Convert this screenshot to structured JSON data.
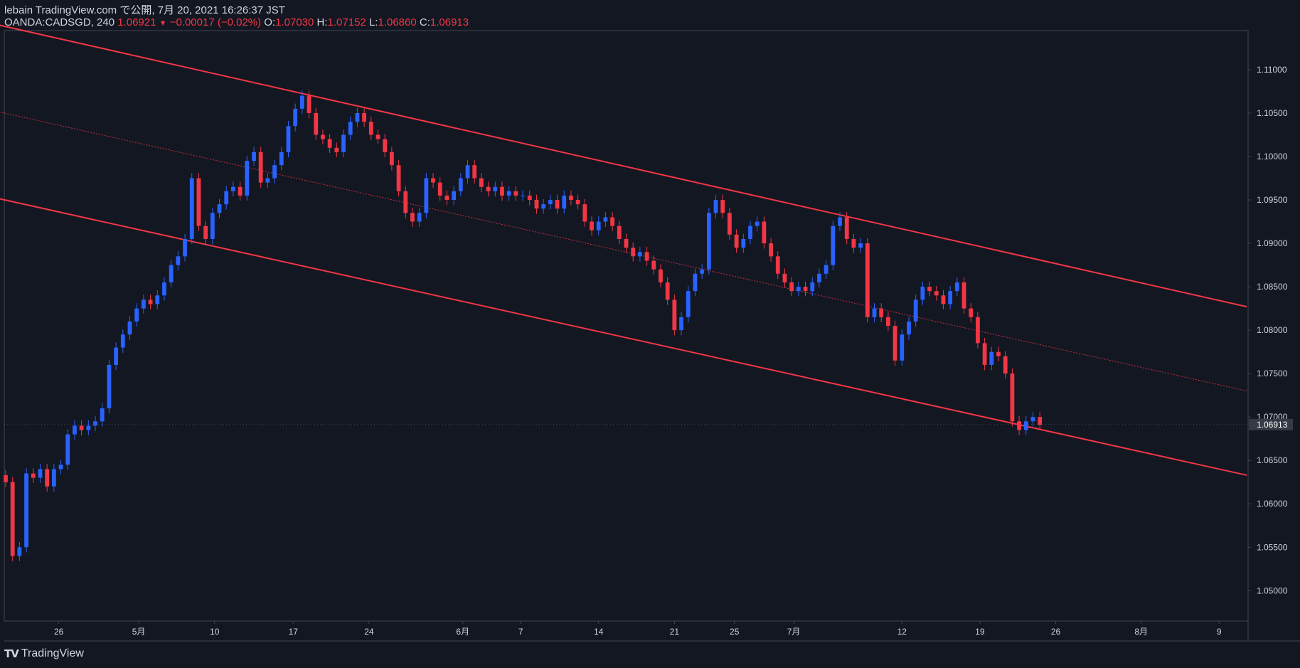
{
  "header": {
    "published": "lebain TradingView.com で公開, 7月 20, 2021 16:26:37 JST",
    "symbol": "OANDA:CADSGD, 240",
    "last": "1.06921",
    "change": "−0.00017 (−0.02%)",
    "o_label": "O:",
    "o_value": "1.07030",
    "h_label": "H:",
    "h_value": "1.07152",
    "l_label": "L:",
    "l_value": "1.06860",
    "c_label": "C:",
    "c_value": "1.06913"
  },
  "footer": {
    "brand": "TradingView"
  },
  "colors": {
    "background": "#131722",
    "up": "#2962ff",
    "down": "#f23645",
    "channel": "#f23645",
    "text": "#d1d4dc"
  },
  "chart_data": {
    "type": "candlestick",
    "title": "",
    "ylim": [
      1.0465,
      1.1145
    ],
    "y_ticks": [
      "1.11000",
      "1.10500",
      "1.10000",
      "1.09500",
      "1.09000",
      "1.08500",
      "1.08000",
      "1.07500",
      "1.07000",
      "1.06500",
      "1.06000",
      "1.05500",
      "1.05000"
    ],
    "x_ticks": [
      "26",
      "5月",
      "10",
      "17",
      "24",
      "6月",
      "7",
      "14",
      "21",
      "25",
      "7月",
      "12",
      "19",
      "26",
      "8月",
      "9"
    ],
    "x_tick_positions": [
      7.7,
      19.3,
      30.3,
      41.7,
      52.7,
      66.3,
      74.7,
      86.0,
      97.0,
      105.7,
      114.3,
      130.0,
      141.3,
      152.3,
      164.7,
      176.0
    ],
    "last_price_label": "1.06913",
    "last_price": 1.06913,
    "x_range": [
      0,
      180
    ],
    "candles_approx_close": [
      [
        0,
        1.0625
      ],
      [
        1,
        1.054
      ],
      [
        2,
        1.055
      ],
      [
        3,
        1.0635
      ],
      [
        4,
        1.063
      ],
      [
        5,
        1.064
      ],
      [
        6,
        1.062
      ],
      [
        7,
        1.064
      ],
      [
        8,
        1.0645
      ],
      [
        9,
        1.068
      ],
      [
        10,
        1.069
      ],
      [
        11,
        1.0685
      ],
      [
        12,
        1.069
      ],
      [
        13,
        1.0695
      ],
      [
        14,
        1.071
      ],
      [
        15,
        1.076
      ],
      [
        16,
        1.078
      ],
      [
        17,
        1.0795
      ],
      [
        18,
        1.081
      ],
      [
        19,
        1.0825
      ],
      [
        20,
        1.0835
      ],
      [
        21,
        1.083
      ],
      [
        22,
        1.084
      ],
      [
        23,
        1.0855
      ],
      [
        24,
        1.0875
      ],
      [
        25,
        1.0885
      ],
      [
        26,
        1.0905
      ],
      [
        27,
        1.0975
      ],
      [
        28,
        1.092
      ],
      [
        29,
        1.0905
      ],
      [
        30,
        1.0935
      ],
      [
        31,
        1.0945
      ],
      [
        32,
        1.096
      ],
      [
        33,
        1.0965
      ],
      [
        34,
        1.0955
      ],
      [
        35,
        1.0995
      ],
      [
        36,
        1.1005
      ],
      [
        37,
        1.097
      ],
      [
        38,
        1.0975
      ],
      [
        39,
        1.099
      ],
      [
        40,
        1.1005
      ],
      [
        41,
        1.1035
      ],
      [
        42,
        1.1055
      ],
      [
        43,
        1.107
      ],
      [
        44,
        1.105
      ],
      [
        45,
        1.1025
      ],
      [
        46,
        1.102
      ],
      [
        47,
        1.101
      ],
      [
        48,
        1.1005
      ],
      [
        49,
        1.1025
      ],
      [
        50,
        1.104
      ],
      [
        51,
        1.105
      ],
      [
        52,
        1.104
      ],
      [
        53,
        1.1025
      ],
      [
        54,
        1.102
      ],
      [
        55,
        1.1005
      ],
      [
        56,
        1.099
      ],
      [
        57,
        1.096
      ],
      [
        58,
        1.0935
      ],
      [
        59,
        1.0925
      ],
      [
        60,
        1.0935
      ],
      [
        61,
        1.0975
      ],
      [
        62,
        1.097
      ],
      [
        63,
        1.0955
      ],
      [
        64,
        1.095
      ],
      [
        65,
        1.096
      ],
      [
        66,
        1.0975
      ],
      [
        67,
        1.099
      ],
      [
        68,
        1.0975
      ],
      [
        69,
        1.0965
      ],
      [
        70,
        1.096
      ],
      [
        71,
        1.0965
      ],
      [
        72,
        1.0955
      ],
      [
        73,
        1.096
      ],
      [
        74,
        1.0955
      ],
      [
        75,
        1.0955
      ],
      [
        76,
        1.095
      ],
      [
        77,
        1.094
      ],
      [
        78,
        1.0945
      ],
      [
        79,
        1.095
      ],
      [
        80,
        1.094
      ],
      [
        81,
        1.0955
      ],
      [
        82,
        1.095
      ],
      [
        83,
        1.0945
      ],
      [
        84,
        1.0925
      ],
      [
        85,
        1.0915
      ],
      [
        86,
        1.0925
      ],
      [
        87,
        1.093
      ],
      [
        88,
        1.092
      ],
      [
        89,
        1.0905
      ],
      [
        90,
        1.0895
      ],
      [
        91,
        1.0885
      ],
      [
        92,
        1.089
      ],
      [
        93,
        1.088
      ],
      [
        94,
        1.087
      ],
      [
        95,
        1.0855
      ],
      [
        96,
        1.0835
      ],
      [
        97,
        1.08
      ],
      [
        98,
        1.0815
      ],
      [
        99,
        1.0845
      ],
      [
        100,
        1.0865
      ],
      [
        101,
        1.087
      ],
      [
        102,
        1.0935
      ],
      [
        103,
        1.095
      ],
      [
        104,
        1.0935
      ],
      [
        105,
        1.091
      ],
      [
        106,
        1.0895
      ],
      [
        107,
        1.0905
      ],
      [
        108,
        1.092
      ],
      [
        109,
        1.0925
      ],
      [
        110,
        1.09
      ],
      [
        111,
        1.0885
      ],
      [
        112,
        1.0865
      ],
      [
        113,
        1.0855
      ],
      [
        114,
        1.0845
      ],
      [
        115,
        1.085
      ],
      [
        116,
        1.0845
      ],
      [
        117,
        1.0855
      ],
      [
        118,
        1.0865
      ],
      [
        119,
        1.0875
      ],
      [
        120,
        1.092
      ],
      [
        121,
        1.093
      ],
      [
        122,
        1.0905
      ],
      [
        123,
        1.0895
      ],
      [
        124,
        1.09
      ],
      [
        125,
        1.0815
      ],
      [
        126,
        1.0825
      ],
      [
        127,
        1.0815
      ],
      [
        128,
        1.0805
      ],
      [
        129,
        1.0765
      ],
      [
        130,
        1.0795
      ],
      [
        131,
        1.081
      ],
      [
        132,
        1.0835
      ],
      [
        133,
        1.085
      ],
      [
        134,
        1.0845
      ],
      [
        135,
        1.084
      ],
      [
        136,
        1.083
      ],
      [
        137,
        1.0845
      ],
      [
        138,
        1.0855
      ],
      [
        139,
        1.0825
      ],
      [
        140,
        1.0815
      ],
      [
        141,
        1.0785
      ],
      [
        142,
        1.076
      ],
      [
        143,
        1.0775
      ],
      [
        144,
        1.077
      ],
      [
        145,
        1.075
      ],
      [
        146,
        1.0695
      ],
      [
        147,
        1.0685
      ],
      [
        148,
        1.0695
      ],
      [
        149,
        1.07
      ],
      [
        150,
        1.0691
      ]
    ],
    "channel": {
      "upper": [
        [
          -3.0,
          1.1155
        ],
        [
          180,
          1.0827
        ]
      ],
      "middle": [
        [
          -3.0,
          1.1055
        ],
        [
          180,
          1.073
        ]
      ],
      "lower": [
        [
          -3.0,
          1.0955
        ],
        [
          180,
          1.0633
        ]
      ]
    }
  }
}
